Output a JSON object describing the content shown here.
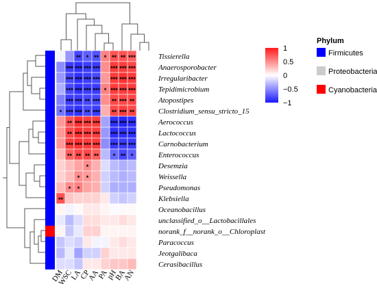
{
  "chart_data": {
    "type": "heatmap",
    "columns": [
      "DM",
      "WSC",
      "LA",
      "CP",
      "AA",
      "PA",
      "pH",
      "BA",
      "AN"
    ],
    "rows": [
      "Tissierella",
      "Anaerosporobacter",
      "Irregularibacter",
      "Tepidimicrobium",
      "Atopostipes",
      "Clostridium_sensu_stricto_15",
      "Aerococcus",
      "Lactococcus",
      "Carnobacterium",
      "Enterococcus",
      "Desemzia",
      "Weissella",
      "Pseudomonas",
      "Klebsiella",
      "Oceanobacillus",
      "unclassified_o__Lactobacillales",
      "norank_f__norank_o__Chloroplast",
      "Paracoccus",
      "Jeotgalibaca",
      "Cerasibacillus"
    ],
    "values": [
      [
        -0.05,
        -0.45,
        -0.8,
        -0.7,
        -0.75,
        0.55,
        0.75,
        0.75,
        0.7
      ],
      [
        -0.5,
        -0.85,
        -0.9,
        -0.85,
        -0.85,
        0.5,
        0.85,
        0.85,
        0.8
      ],
      [
        -0.45,
        -0.8,
        -0.9,
        -0.85,
        -0.8,
        0.45,
        0.85,
        0.9,
        0.85
      ],
      [
        -0.35,
        -0.8,
        -0.9,
        -0.85,
        -0.85,
        0.55,
        0.85,
        0.85,
        0.85
      ],
      [
        -0.55,
        -0.85,
        -0.85,
        -0.8,
        -0.8,
        0.5,
        0.8,
        0.8,
        0.8
      ],
      [
        -0.6,
        -0.85,
        -0.9,
        -0.8,
        -0.85,
        0.35,
        0.8,
        0.85,
        0.8
      ],
      [
        0.45,
        0.75,
        0.9,
        0.85,
        0.85,
        -0.4,
        -0.9,
        -0.95,
        -0.9
      ],
      [
        0.45,
        0.8,
        0.9,
        0.85,
        0.85,
        -0.45,
        -0.9,
        -0.9,
        -0.9
      ],
      [
        0.45,
        0.85,
        0.9,
        0.85,
        0.85,
        -0.5,
        -0.85,
        -0.85,
        -0.85
      ],
      [
        0.3,
        0.7,
        0.8,
        0.8,
        0.7,
        -0.3,
        -0.65,
        -0.8,
        -0.7
      ],
      [
        0.2,
        0.3,
        0.4,
        0.5,
        0.35,
        -0.15,
        -0.3,
        -0.35,
        -0.3
      ],
      [
        0.2,
        0.3,
        0.5,
        0.45,
        0.35,
        -0.2,
        -0.3,
        -0.35,
        -0.3
      ],
      [
        0.3,
        0.5,
        0.55,
        0.4,
        0.35,
        -0.2,
        -0.35,
        -0.35,
        -0.35
      ],
      [
        0.75,
        0.25,
        0.2,
        0.2,
        0.2,
        0.1,
        -0.2,
        -0.25,
        -0.2
      ],
      [
        0.05,
        -0.05,
        0.02,
        0.1,
        0.1,
        0.05,
        -0.02,
        0.02,
        0.02
      ],
      [
        -0.1,
        -0.3,
        -0.15,
        0.15,
        0.15,
        0.1,
        0.1,
        0.15,
        0.1
      ],
      [
        0.05,
        -0.25,
        -0.1,
        0.2,
        0.2,
        0.05,
        0.05,
        0.05,
        0.05
      ],
      [
        -0.25,
        -0.15,
        -0.2,
        0.1,
        -0.05,
        -0.05,
        0.1,
        0.15,
        0.1
      ],
      [
        -0.3,
        -0.1,
        -0.4,
        -0.2,
        -0.2,
        0.2,
        0.1,
        0.1,
        0.1
      ],
      [
        -0.15,
        -0.15,
        -0.25,
        0.1,
        0.1,
        0.2,
        0.25,
        0.25,
        0.3
      ]
    ],
    "significance": [
      [
        "",
        "",
        "**",
        "*",
        "**",
        "*",
        "**",
        "**",
        "***"
      ],
      [
        "",
        "***",
        "***",
        "***",
        "***",
        "",
        "***",
        "***",
        "***"
      ],
      [
        "",
        "***",
        "***",
        "***",
        "***",
        "",
        "***",
        "***",
        "***"
      ],
      [
        "",
        "***",
        "***",
        "***",
        "***",
        "*",
        "***",
        "***",
        "***"
      ],
      [
        "",
        "***",
        "***",
        "**",
        "***",
        "",
        "**",
        "***",
        "**"
      ],
      [
        "*",
        "***",
        "***",
        "**",
        "***",
        "",
        "**",
        "***",
        "**"
      ],
      [
        "",
        "**",
        "***",
        "***",
        "***",
        "",
        "***",
        "***",
        "***"
      ],
      [
        "",
        "**",
        "***",
        "***",
        "***",
        "",
        "***",
        "***",
        "***"
      ],
      [
        "",
        "***",
        "***",
        "***",
        "***",
        "",
        "***",
        "***",
        "***"
      ],
      [
        "",
        "**",
        "**",
        "**",
        "**",
        "",
        "*",
        "**",
        "*"
      ],
      [
        "",
        "",
        "",
        "*",
        "",
        "",
        "",
        "",
        ""
      ],
      [
        "",
        "",
        "*",
        "*",
        "",
        "",
        "",
        "",
        ""
      ],
      [
        "",
        "*",
        "*",
        "",
        "",
        "",
        "",
        "",
        ""
      ],
      [
        "**",
        "",
        "",
        "",
        "",
        "",
        "",
        "",
        ""
      ],
      [
        "",
        "",
        "",
        "",
        "",
        "",
        "",
        "",
        ""
      ],
      [
        "",
        "",
        "",
        "",
        "",
        "",
        "",
        "",
        ""
      ],
      [
        "",
        "",
        "",
        "",
        "",
        "",
        "",
        "",
        ""
      ],
      [
        "",
        "",
        "",
        "",
        "",
        "",
        "",
        "",
        ""
      ],
      [
        "",
        "",
        "",
        "",
        "",
        "",
        "",
        "",
        ""
      ],
      [
        "",
        "",
        "",
        "",
        "",
        "",
        "",
        "",
        ""
      ]
    ],
    "row_phylum": [
      "Firmicutes",
      "Firmicutes",
      "Firmicutes",
      "Firmicutes",
      "Firmicutes",
      "Firmicutes",
      "Firmicutes",
      "Firmicutes",
      "Firmicutes",
      "Firmicutes",
      "Firmicutes",
      "Firmicutes",
      "Firmicutes",
      "Firmicutes",
      "Firmicutes",
      "Firmicutes",
      "Cyanobacteria",
      "Firmicutes",
      "Firmicutes",
      "Firmicutes"
    ],
    "color_scale": {
      "range": [
        -1,
        1
      ],
      "ticks": [
        {
          "value": 1,
          "label": "1"
        },
        {
          "value": 0.5,
          "label": "0.5"
        },
        {
          "value": 0,
          "label": "0"
        },
        {
          "value": -0.5,
          "label": "−0.5"
        },
        {
          "value": -1,
          "label": "−1"
        }
      ],
      "low_color": "#1a1aff",
      "mid_color": "#ffffff",
      "high_color": "#ff1a1a"
    },
    "legend": {
      "title": "Phylum",
      "items": [
        {
          "label": "Firmicutes",
          "color": "#0000ff"
        },
        {
          "label": "Proteobacteria",
          "color": "#cccccc"
        },
        {
          "label": "Cyanobacteria",
          "color": "#ff0000"
        }
      ]
    }
  }
}
